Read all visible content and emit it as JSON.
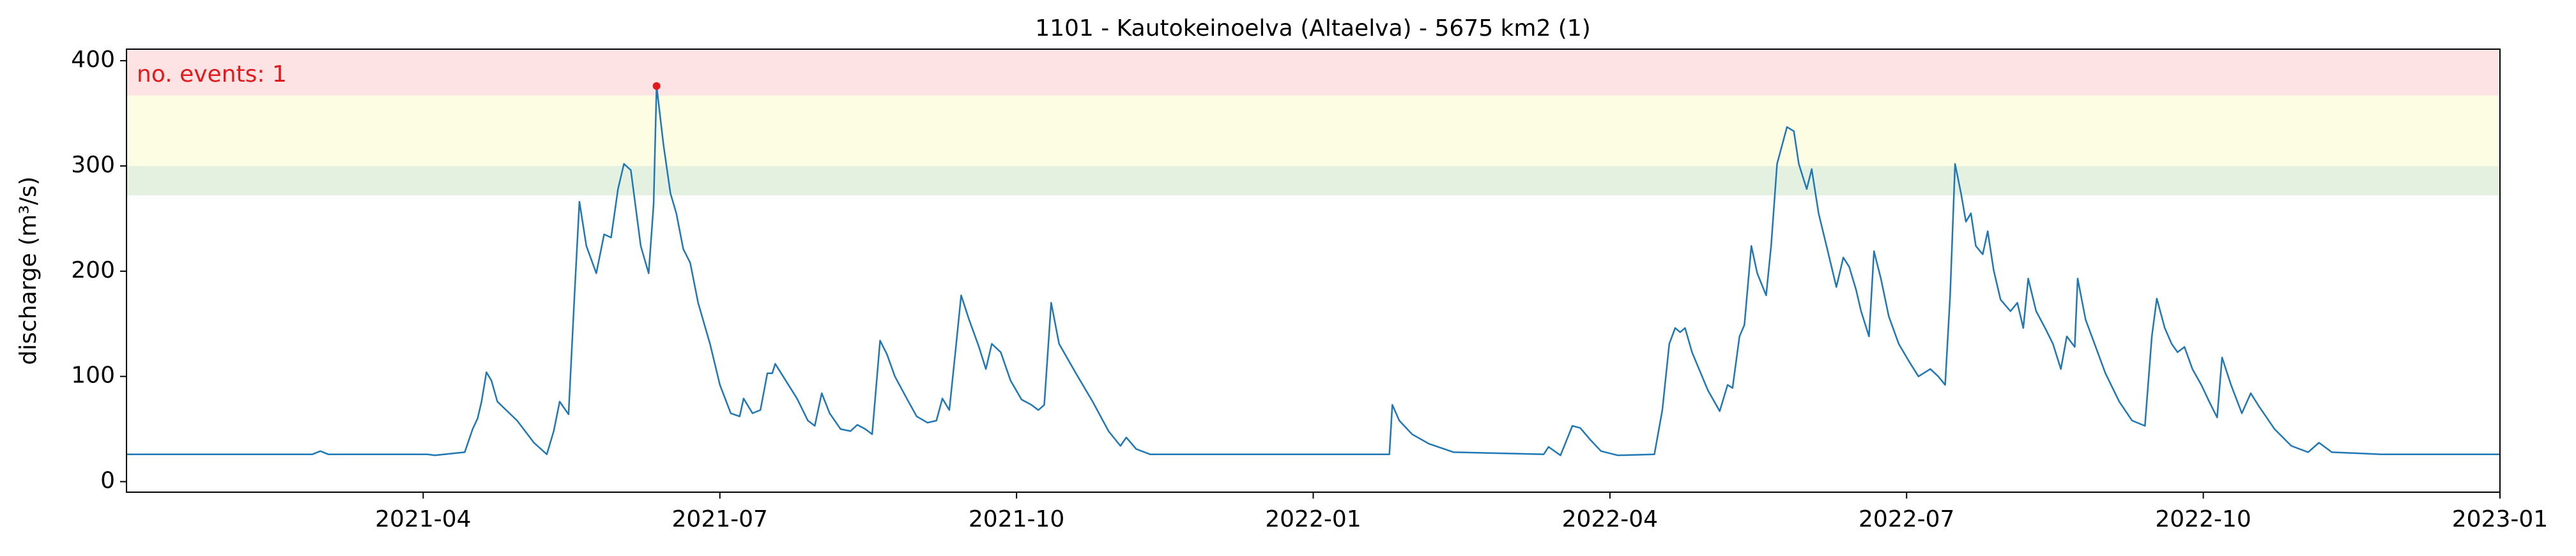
{
  "chart_data": {
    "type": "line",
    "title": "1101 - Kautokeinoelva (Altaelva) - 5675 km2 (1)",
    "y_label": "discharge (m³/s)",
    "annotation": "no. events: 1",
    "xlim": [
      0,
      24
    ],
    "xticks": [
      {
        "value": 3,
        "label": "2021-04"
      },
      {
        "value": 6,
        "label": "2021-07"
      },
      {
        "value": 9,
        "label": "2021-10"
      },
      {
        "value": 12,
        "label": "2022-01"
      },
      {
        "value": 15,
        "label": "2022-04"
      },
      {
        "value": 18,
        "label": "2022-07"
      },
      {
        "value": 21,
        "label": "2022-10"
      },
      {
        "value": 24,
        "label": "2023-01"
      }
    ],
    "ylim": [
      -10,
      411
    ],
    "yticks": [
      0,
      100,
      200,
      300,
      400
    ],
    "thresholds": [
      272,
      300,
      367
    ],
    "band_colors": [
      "#e4f1e0",
      "#fdfde3",
      "#fde3e4"
    ],
    "annotation_color": "#e31a1c",
    "series": [
      {
        "name": "discharge",
        "color": "#1f77b4",
        "x": [
          0,
          1.88,
          1.96,
          2.04,
          3.04,
          3.12,
          3.42,
          3.5,
          3.55,
          3.59,
          3.64,
          3.69,
          3.75,
          3.95,
          4.12,
          4.25,
          4.32,
          4.38,
          4.47,
          4.53,
          4.58,
          4.65,
          4.75,
          4.83,
          4.9,
          4.97,
          5.03,
          5.1,
          5.2,
          5.28,
          5.33,
          5.36,
          5.43,
          5.5,
          5.56,
          5.63,
          5.7,
          5.78,
          5.9,
          6.0,
          6.11,
          6.2,
          6.24,
          6.33,
          6.41,
          6.48,
          6.53,
          6.56,
          6.64,
          6.78,
          6.89,
          6.96,
          7.03,
          7.11,
          7.22,
          7.32,
          7.39,
          7.47,
          7.54,
          7.62,
          7.69,
          7.77,
          7.89,
          7.99,
          8.1,
          8.19,
          8.25,
          8.32,
          8.39,
          8.44,
          8.52,
          8.62,
          8.69,
          8.75,
          8.84,
          8.94,
          9.05,
          9.15,
          9.22,
          9.28,
          9.35,
          9.43,
          9.6,
          9.77,
          9.93,
          10.05,
          10.11,
          10.21,
          10.35,
          10.68,
          12.77,
          12.8,
          12.87,
          13.0,
          13.17,
          13.42,
          14.33,
          14.38,
          14.5,
          14.62,
          14.7,
          14.8,
          14.91,
          15.08,
          15.45,
          15.53,
          15.6,
          15.66,
          15.71,
          15.76,
          15.83,
          15.99,
          16.11,
          16.19,
          16.24,
          16.31,
          16.36,
          16.43,
          16.49,
          16.58,
          16.63,
          16.69,
          16.79,
          16.86,
          16.91,
          16.99,
          17.04,
          17.11,
          17.19,
          17.29,
          17.36,
          17.42,
          17.49,
          17.54,
          17.62,
          17.67,
          17.74,
          17.82,
          17.92,
          18.02,
          18.12,
          18.24,
          18.32,
          18.39,
          18.44,
          18.49,
          18.55,
          18.6,
          18.65,
          18.7,
          18.77,
          18.82,
          18.88,
          18.95,
          19.05,
          19.12,
          19.18,
          19.23,
          19.31,
          19.4,
          19.48,
          19.56,
          19.62,
          19.7,
          19.73,
          19.81,
          19.9,
          20.01,
          20.15,
          20.28,
          20.41,
          20.48,
          20.53,
          20.61,
          20.68,
          20.74,
          20.81,
          20.89,
          20.98,
          21.06,
          21.14,
          21.19,
          21.28,
          21.39,
          21.48,
          21.56,
          21.72,
          21.89,
          22.06,
          22.17,
          22.3,
          22.8,
          24
        ],
        "values": [
          26,
          26,
          29,
          26,
          26,
          25,
          28,
          50,
          60,
          76,
          104,
          96,
          76,
          58,
          37,
          26,
          48,
          76,
          64,
          177,
          266,
          224,
          198,
          235,
          232,
          278,
          302,
          296,
          224,
          198,
          263,
          376,
          320,
          274,
          255,
          221,
          208,
          170,
          131,
          92,
          65,
          62,
          79,
          65,
          68,
          103,
          103,
          112,
          100,
          79,
          58,
          53,
          84,
          65,
          50,
          48,
          54,
          50,
          45,
          134,
          121,
          100,
          79,
          62,
          56,
          58,
          79,
          68,
          131,
          177,
          154,
          128,
          107,
          131,
          123,
          96,
          78,
          73,
          68,
          73,
          170,
          131,
          103,
          76,
          48,
          34,
          42,
          31,
          26,
          26,
          26,
          73,
          58,
          45,
          36,
          28,
          26,
          33,
          25,
          53,
          51,
          40,
          29,
          25,
          26,
          68,
          131,
          146,
          142,
          146,
          123,
          87,
          67,
          92,
          89,
          138,
          149,
          224,
          198,
          177,
          224,
          302,
          337,
          333,
          302,
          278,
          297,
          255,
          224,
          185,
          213,
          204,
          182,
          162,
          138,
          219,
          193,
          157,
          131,
          115,
          100,
          107,
          100,
          92,
          177,
          302,
          274,
          247,
          255,
          224,
          216,
          238,
          201,
          173,
          162,
          170,
          146,
          193,
          162,
          146,
          131,
          107,
          138,
          128,
          193,
          154,
          131,
          103,
          76,
          58,
          53,
          138,
          174,
          146,
          131,
          123,
          128,
          107,
          92,
          76,
          61,
          118,
          92,
          65,
          84,
          72,
          50,
          34,
          28,
          37,
          28,
          26,
          26
        ]
      }
    ],
    "events": {
      "x": [
        5.36
      ],
      "values": [
        376
      ],
      "color": "#e31a1c"
    }
  }
}
